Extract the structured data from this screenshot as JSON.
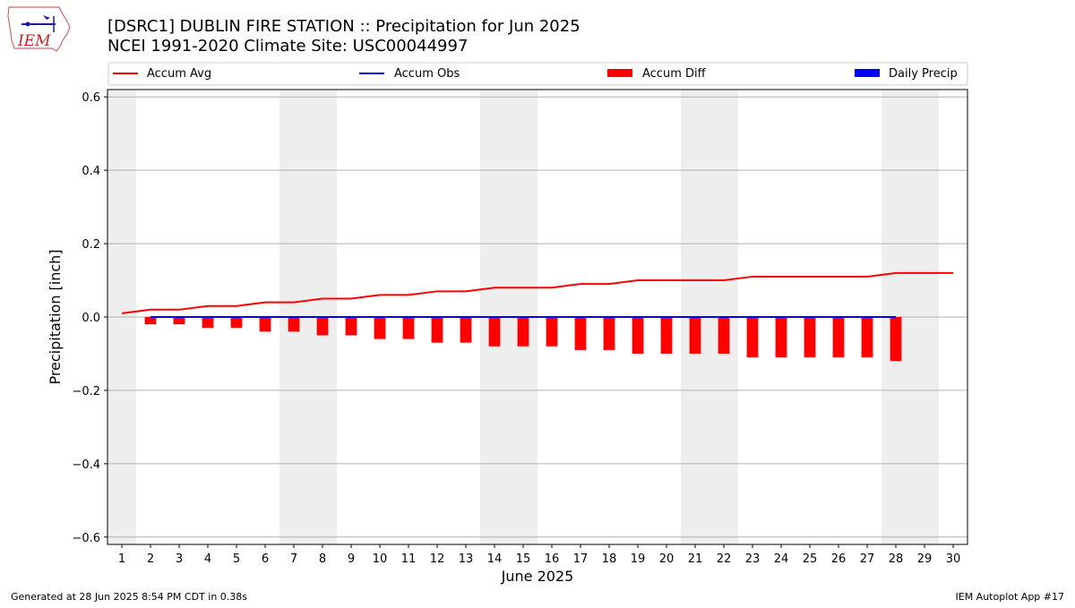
{
  "header": {
    "title_line1": "[DSRC1] DUBLIN FIRE STATION :: Precipitation for Jun 2025",
    "title_line2": "NCEI 1991-2020 Climate Site: USC00044997",
    "logo_text": "IEM"
  },
  "legend": {
    "placement": "top, full width, above plot",
    "items": [
      {
        "label": "Accum Avg",
        "kind": "line",
        "color": "#ff0000"
      },
      {
        "label": "Accum Obs",
        "kind": "line",
        "color": "#0000ff"
      },
      {
        "label": "Accum Diff",
        "kind": "bar",
        "color": "#ff0000"
      },
      {
        "label": "Daily Precip",
        "kind": "bar",
        "color": "#0000ff"
      }
    ]
  },
  "footer": {
    "left": "Generated at 28 Jun 2025 8:54 PM CDT in 0.38s",
    "right": "IEM Autoplot App #17"
  },
  "chart_data": {
    "type": "line",
    "xlabel": "June 2025",
    "ylabel": "Precipitation [inch]",
    "xlim": [
      0.5,
      30.5
    ],
    "ylim": [
      -0.62,
      0.62
    ],
    "x_ticks": [
      1,
      2,
      3,
      4,
      5,
      6,
      7,
      8,
      9,
      10,
      11,
      12,
      13,
      14,
      15,
      16,
      17,
      18,
      19,
      20,
      21,
      22,
      23,
      24,
      25,
      26,
      27,
      28,
      29,
      30
    ],
    "y_ticks": [
      0.6,
      0.4,
      0.2,
      0.0,
      -0.2,
      -0.4,
      -0.6
    ],
    "y_tick_labels": [
      "0.6",
      "0.4",
      "0.2",
      "0.0",
      "−0.2",
      "−0.4",
      "−0.6"
    ],
    "grid": "horizontal",
    "weekend_shading": [
      [
        0.5,
        1.5
      ],
      [
        6.5,
        8.5
      ],
      [
        13.5,
        15.5
      ],
      [
        20.5,
        22.5
      ],
      [
        27.5,
        29.5
      ]
    ],
    "shading_color": "#eeeeee",
    "series": [
      {
        "name": "Accum Avg",
        "kind": "line",
        "color": "#ff0000",
        "x": [
          1,
          2,
          3,
          4,
          5,
          6,
          7,
          8,
          9,
          10,
          11,
          12,
          13,
          14,
          15,
          16,
          17,
          18,
          19,
          20,
          21,
          22,
          23,
          24,
          25,
          26,
          27,
          28,
          29,
          30
        ],
        "values": [
          0.01,
          0.02,
          0.02,
          0.03,
          0.03,
          0.04,
          0.04,
          0.05,
          0.05,
          0.06,
          0.06,
          0.07,
          0.07,
          0.08,
          0.08,
          0.08,
          0.09,
          0.09,
          0.1,
          0.1,
          0.1,
          0.1,
          0.11,
          0.11,
          0.11,
          0.11,
          0.11,
          0.12,
          0.12,
          0.12
        ]
      },
      {
        "name": "Accum Obs",
        "kind": "line",
        "color": "#0000ff",
        "x": [
          2,
          3,
          4,
          5,
          6,
          7,
          8,
          9,
          10,
          11,
          12,
          13,
          14,
          15,
          16,
          17,
          18,
          19,
          20,
          21,
          22,
          23,
          24,
          25,
          26,
          27,
          28
        ],
        "values": [
          0,
          0,
          0,
          0,
          0,
          0,
          0,
          0,
          0,
          0,
          0,
          0,
          0,
          0,
          0,
          0,
          0,
          0,
          0,
          0,
          0,
          0,
          0,
          0,
          0,
          0,
          0
        ]
      },
      {
        "name": "Accum Diff",
        "kind": "bar",
        "color": "#ff0000",
        "x": [
          2,
          3,
          4,
          5,
          6,
          7,
          8,
          9,
          10,
          11,
          12,
          13,
          14,
          15,
          16,
          17,
          18,
          19,
          20,
          21,
          22,
          23,
          24,
          25,
          26,
          27,
          28
        ],
        "values": [
          -0.02,
          -0.02,
          -0.03,
          -0.03,
          -0.04,
          -0.04,
          -0.05,
          -0.05,
          -0.06,
          -0.06,
          -0.07,
          -0.07,
          -0.08,
          -0.08,
          -0.08,
          -0.09,
          -0.09,
          -0.1,
          -0.1,
          -0.1,
          -0.1,
          -0.11,
          -0.11,
          -0.11,
          -0.11,
          -0.11,
          -0.12
        ]
      },
      {
        "name": "Daily Precip",
        "kind": "bar",
        "color": "#0000ff",
        "x": [
          2,
          3,
          4,
          5,
          6,
          7,
          8,
          9,
          10,
          11,
          12,
          13,
          14,
          15,
          16,
          17,
          18,
          19,
          20,
          21,
          22,
          23,
          24,
          25,
          26,
          27,
          28
        ],
        "values": [
          0,
          0,
          0,
          0,
          0,
          0,
          0,
          0,
          0,
          0,
          0,
          0,
          0,
          0,
          0,
          0,
          0,
          0,
          0,
          0,
          0,
          0,
          0,
          0,
          0,
          0,
          0
        ]
      }
    ]
  }
}
